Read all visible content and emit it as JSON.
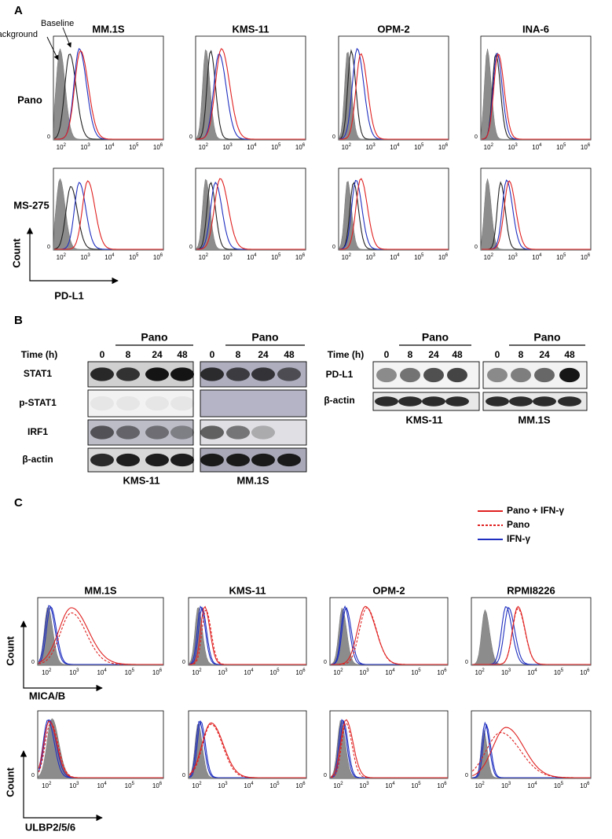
{
  "axis_ticks": {
    "zero": "0",
    "base": "10",
    "exponents": [
      "2",
      "3",
      "4",
      "5",
      "6"
    ]
  },
  "panel_a": {
    "label": "A",
    "legend": [
      "Baseline",
      "Background"
    ],
    "cell_lines": [
      "MM.1S",
      "KMS-11",
      "OPM-2",
      "INA-6"
    ],
    "rows": [
      "Pano",
      "MS-275"
    ],
    "y_axis": "Count",
    "x_axis": "PD-L1"
  },
  "panel_b": {
    "label": "B",
    "treatment": "Pano",
    "time_label": "Time (h)",
    "times": [
      "0",
      "8",
      "24",
      "48"
    ],
    "left_rows": [
      "STAT1",
      "p-STAT1",
      "IRF1",
      "β-actin"
    ],
    "right_rows": [
      "PD-L1",
      "β-actin"
    ],
    "cell_lines": [
      "KMS-11",
      "MM.1S"
    ]
  },
  "panel_c": {
    "label": "C",
    "legend": [
      "Pano + IFN-γ",
      "Pano",
      "IFN-γ"
    ],
    "cell_lines": [
      "MM.1S",
      "KMS-11",
      "OPM-2",
      "RPMI8226"
    ],
    "y_axis": "Count",
    "x_axes": [
      "MICA/B",
      "ULBP2/5/6"
    ]
  }
}
